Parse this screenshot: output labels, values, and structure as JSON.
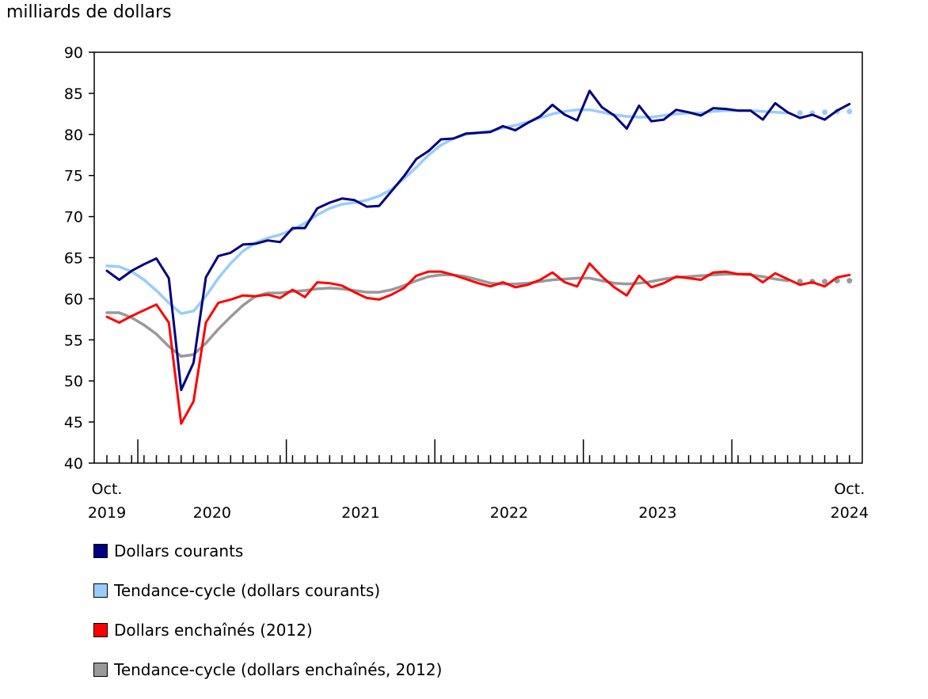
{
  "chart_data": {
    "type": "line",
    "ylabel": "milliards de dollars",
    "ylim": [
      40,
      90
    ],
    "yticks": [
      "40",
      "45",
      "50",
      "55",
      "60",
      "65",
      "70",
      "75",
      "80",
      "85",
      "90"
    ],
    "x_start": "2019-10",
    "x_end": "2024-10",
    "x_labels": [
      {
        "label": "Oct.",
        "sub": "2019",
        "month_index": 0
      },
      {
        "label": "",
        "sub": "2020",
        "month_index": 9
      },
      {
        "label": "",
        "sub": "2021",
        "month_index": 21
      },
      {
        "label": "",
        "sub": "2022",
        "month_index": 33
      },
      {
        "label": "",
        "sub": "2023",
        "month_index": 45
      },
      {
        "label": "Oct.",
        "sub": "2024",
        "month_index": 60
      }
    ],
    "year_boundaries": [
      2.5,
      14.5,
      26.5,
      38.5,
      50.5
    ],
    "trend_dotted_last_n": 5,
    "series": [
      {
        "name": "Dollars courants",
        "color": "#000080",
        "style": "solid",
        "values": [
          63.4,
          62.3,
          63.4,
          64.2,
          64.9,
          62.5,
          48.9,
          52.2,
          62.6,
          65.2,
          65.6,
          66.6,
          66.7,
          67.1,
          66.9,
          68.6,
          68.6,
          71.0,
          71.7,
          72.2,
          72.0,
          71.2,
          71.3,
          73.1,
          74.9,
          77.0,
          78.0,
          79.4,
          79.5,
          80.1,
          80.2,
          80.3,
          81.0,
          80.5,
          81.4,
          82.2,
          83.6,
          82.4,
          81.7,
          85.3,
          83.3,
          82.3,
          80.7,
          83.5,
          81.6,
          81.8,
          83.0,
          82.7,
          82.3,
          83.2,
          83.1,
          82.9,
          82.9,
          81.8,
          83.8,
          82.7,
          82.0,
          82.4,
          81.8,
          82.9,
          83.7
        ]
      },
      {
        "name": "Tendance-cycle (dollars courants)",
        "color": "#99ccff",
        "style": "trend",
        "values": [
          64.0,
          63.9,
          63.3,
          62.3,
          61.0,
          59.5,
          58.2,
          58.5,
          60.3,
          62.5,
          64.3,
          65.8,
          66.8,
          67.4,
          67.8,
          68.4,
          69.2,
          70.2,
          71.0,
          71.5,
          71.7,
          72.0,
          72.5,
          73.3,
          74.6,
          76.0,
          77.5,
          78.7,
          79.5,
          80.0,
          80.2,
          80.4,
          80.8,
          81.1,
          81.5,
          82.0,
          82.5,
          82.8,
          83.0,
          83.0,
          82.7,
          82.4,
          82.2,
          82.1,
          82.1,
          82.3,
          82.5,
          82.6,
          82.6,
          82.8,
          82.9,
          82.9,
          82.9,
          82.8,
          82.7,
          82.6,
          82.6,
          82.6,
          82.7,
          82.8,
          82.8
        ]
      },
      {
        "name": "Dollars enchaînés (2012)",
        "color": "#ff0000",
        "style": "solid",
        "values": [
          57.8,
          57.1,
          57.9,
          58.6,
          59.3,
          57.1,
          44.8,
          47.5,
          57.1,
          59.5,
          59.9,
          60.4,
          60.3,
          60.5,
          60.1,
          61.1,
          60.2,
          62.0,
          61.9,
          61.6,
          60.8,
          60.1,
          59.9,
          60.5,
          61.3,
          62.8,
          63.3,
          63.3,
          62.9,
          62.4,
          61.9,
          61.5,
          62.0,
          61.4,
          61.7,
          62.3,
          63.2,
          62.0,
          61.5,
          64.3,
          62.7,
          61.4,
          60.4,
          62.8,
          61.4,
          61.9,
          62.7,
          62.5,
          62.3,
          63.2,
          63.3,
          63.0,
          63.0,
          62.0,
          63.1,
          62.4,
          61.7,
          62.0,
          61.5,
          62.6,
          62.9
        ]
      },
      {
        "name": "Tendance-cycle (dollars enchaînés, 2012)",
        "color": "#999999",
        "style": "trend",
        "values": [
          58.3,
          58.3,
          57.7,
          56.8,
          55.7,
          54.2,
          53.0,
          53.2,
          54.6,
          56.3,
          57.8,
          59.2,
          60.3,
          60.7,
          60.7,
          60.9,
          61.0,
          61.2,
          61.3,
          61.2,
          61.0,
          60.8,
          60.8,
          61.1,
          61.6,
          62.2,
          62.7,
          62.9,
          62.9,
          62.7,
          62.3,
          61.9,
          61.8,
          61.8,
          61.9,
          62.1,
          62.3,
          62.4,
          62.5,
          62.5,
          62.2,
          61.9,
          61.8,
          61.9,
          62.1,
          62.4,
          62.6,
          62.7,
          62.8,
          62.9,
          63.0,
          63.0,
          62.9,
          62.7,
          62.4,
          62.2,
          62.1,
          62.1,
          62.1,
          62.2,
          62.2
        ]
      }
    ]
  },
  "legend": {
    "items": [
      {
        "label": "Dollars courants",
        "color": "#000080"
      },
      {
        "label": "Tendance-cycle (dollars courants)",
        "color": "#99ccff"
      },
      {
        "label": "Dollars enchaînés (2012)",
        "color": "#ff0000"
      },
      {
        "label": "Tendance-cycle (dollars enchaînés, 2012)",
        "color": "#999999"
      }
    ]
  }
}
